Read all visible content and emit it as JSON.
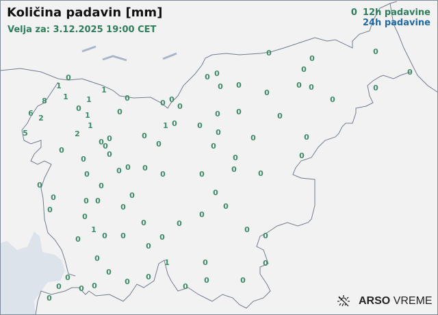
{
  "header": {
    "title": "Količina padavin [mm]",
    "valid_for": "Velja za: 3.12.2025 19:00 CET"
  },
  "legend": {
    "sample_value": "0",
    "label_12h": "12h padavine",
    "label_24h": "24h padavine",
    "color_12h": "#2e7d5b",
    "color_24h": "#1f6aa5"
  },
  "stations_12h_mm": [
    0,
    1,
    1,
    0,
    1,
    1,
    8,
    0,
    1,
    0,
    6,
    2,
    1,
    5,
    2,
    0,
    0,
    0,
    0,
    0,
    0,
    0,
    0,
    0,
    0,
    0,
    1,
    0,
    0,
    0,
    0,
    0,
    0,
    0,
    0,
    0,
    0,
    0,
    0,
    0,
    0,
    0,
    0,
    0,
    0,
    0,
    0,
    0,
    0,
    0,
    0,
    0,
    0,
    0,
    0,
    0,
    0,
    0,
    0,
    0,
    0,
    0,
    0,
    0,
    0,
    0,
    0,
    0,
    0,
    0,
    0,
    0,
    0,
    1,
    0,
    0,
    0,
    0,
    0,
    0,
    0,
    0,
    0,
    0,
    1,
    0,
    0,
    0,
    0,
    0,
    0,
    0,
    0,
    0,
    0,
    0,
    0
  ],
  "logo": {
    "brand_bold": "ARSO",
    "brand_light": "VREME",
    "icon": "sun-rain-icon"
  }
}
